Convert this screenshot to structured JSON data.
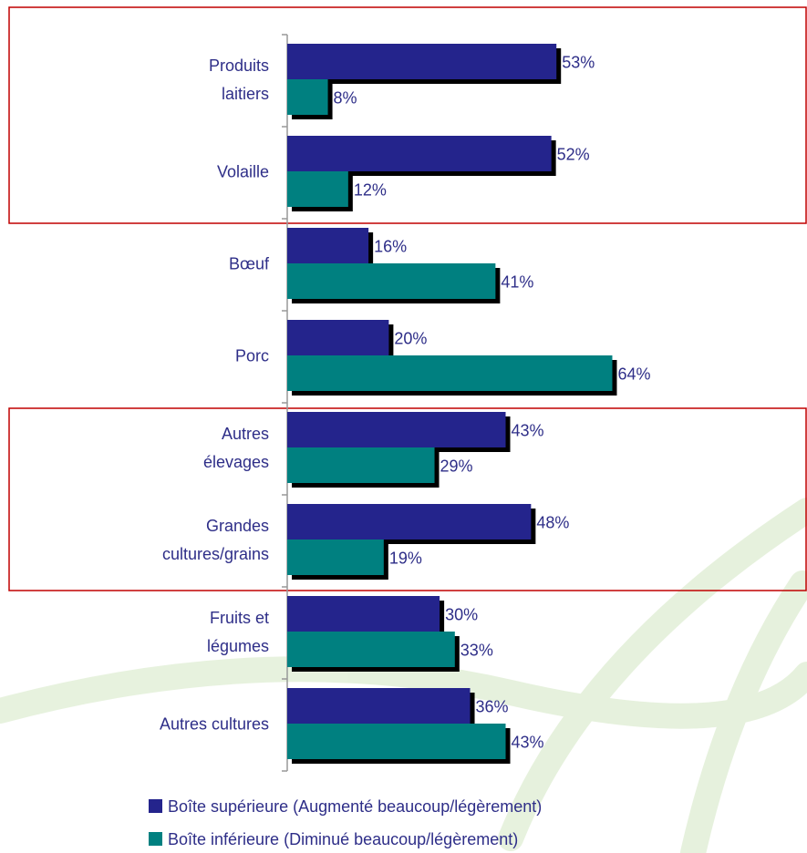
{
  "chart_data": {
    "type": "bar",
    "orientation": "horizontal",
    "categories": [
      "Produits\nlaitiers",
      "Volaille",
      "Bœuf",
      "Porc",
      "Autres\nélevages",
      "Grandes\ncultures/grains",
      "Fruits et\nlégumes",
      "Autres cultures"
    ],
    "series": [
      {
        "name": "Boîte supérieure (Augmenté beaucoup/légèrement)",
        "color": "#24248c",
        "values": [
          53,
          52,
          16,
          20,
          43,
          48,
          30,
          36
        ],
        "value_labels": [
          "53%",
          "52%",
          "16%",
          "20%",
          "43%",
          "48%",
          "30%",
          "36%"
        ]
      },
      {
        "name": "Boîte inférieure (Diminué beaucoup/légèrement)",
        "color": "#008080",
        "values": [
          8,
          12,
          41,
          64,
          29,
          19,
          33,
          43
        ],
        "value_labels": [
          "8%",
          "12%",
          "41%",
          "64%",
          "29%",
          "19%",
          "33%",
          "43%"
        ]
      }
    ],
    "xlim": [
      0,
      100
    ]
  }
}
